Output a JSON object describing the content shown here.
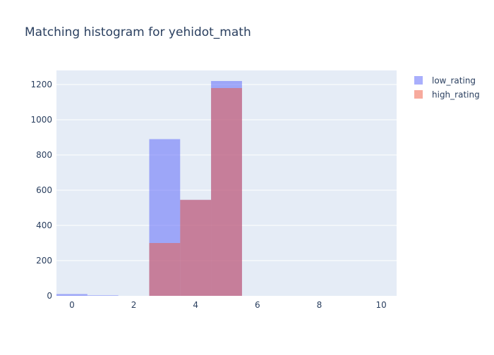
{
  "chart_data": {
    "type": "bar",
    "title": "Matching histogram for yehidot_math",
    "xlabel": "",
    "ylabel": "",
    "xlim": [
      -0.5,
      10.5
    ],
    "ylim": [
      0,
      1280
    ],
    "x_ticks": [
      0,
      2,
      4,
      6,
      8,
      10
    ],
    "y_ticks": [
      0,
      200,
      400,
      600,
      800,
      1000,
      1200
    ],
    "bin_width": 1,
    "bins": [
      0,
      1,
      2,
      3,
      4,
      5,
      6,
      7,
      8,
      9,
      10
    ],
    "grid": true,
    "legend_position": "top-right",
    "barmode": "overlay",
    "series": [
      {
        "name": "low_rating",
        "color": "#636efa",
        "opacity": 0.55,
        "values": [
          10,
          3,
          0,
          890,
          545,
          1220,
          0,
          0,
          0,
          0,
          0
        ]
      },
      {
        "name": "high_rating",
        "color": "#ef553b",
        "opacity": 0.5,
        "values": [
          0,
          0,
          0,
          300,
          545,
          1180,
          0,
          0,
          0,
          0,
          0
        ]
      }
    ],
    "colors": {
      "plot_background": "#e5ecf6",
      "grid": "#ffffff",
      "text": "#2a3f5f"
    }
  }
}
